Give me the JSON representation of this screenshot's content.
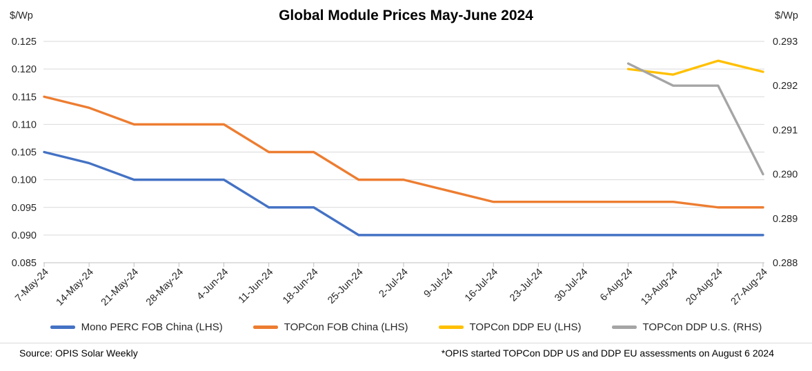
{
  "header": {
    "title": "Global Module Prices May-June 2024",
    "left_axis_unit": "$/Wp",
    "right_axis_unit": "$/Wp"
  },
  "footer": {
    "source": "Source: OPIS Solar Weekly",
    "footnote": "*OPIS started TOPCon DDP US and DDP EU assessments on August 6 2024"
  },
  "colors": {
    "gridline": "#D9D9D9",
    "axis_line": "#BFBFBF",
    "text": "#262626",
    "mono_perc_blue": "#4472C4",
    "topcon_fob_orange": "#ED7D31",
    "topcon_eu_yellow": "#FFC000",
    "topcon_us_gray": "#A5A5A5"
  },
  "chart_data": {
    "type": "line",
    "title": "Global Module Prices May-June 2024",
    "categories": [
      "7-May-24",
      "14-May-24",
      "21-May-24",
      "28-May-24",
      "4-Jun-24",
      "11-Jun-24",
      "18-Jun-24",
      "25-Jun-24",
      "2-Jul-24",
      "9-Jul-24",
      "16-Jul-24",
      "23-Jul-24",
      "30-Jul-24",
      "6-Aug-24",
      "13-Aug-24",
      "20-Aug-24",
      "27-Aug-24"
    ],
    "series": [
      {
        "name": "Mono PERC FOB China (LHS)",
        "axis": "left",
        "color": "#4472C4",
        "values": [
          0.105,
          0.103,
          0.1,
          0.1,
          0.1,
          0.095,
          0.095,
          0.09,
          0.09,
          0.09,
          0.09,
          0.09,
          0.09,
          0.09,
          0.09,
          0.09,
          0.09
        ]
      },
      {
        "name": "TOPCon FOB China (LHS)",
        "axis": "left",
        "color": "#ED7D31",
        "values": [
          0.115,
          0.113,
          0.11,
          0.11,
          0.11,
          0.105,
          0.105,
          0.1,
          0.1,
          0.098,
          0.096,
          0.096,
          0.096,
          0.096,
          0.096,
          0.095,
          0.095
        ]
      },
      {
        "name": "TOPCon DDP EU (LHS)",
        "axis": "left",
        "color": "#FFC000",
        "values": [
          null,
          null,
          null,
          null,
          null,
          null,
          null,
          null,
          null,
          null,
          null,
          null,
          null,
          0.12,
          0.119,
          0.1215,
          0.1195
        ]
      },
      {
        "name": "TOPCon DDP U.S. (RHS)",
        "axis": "right",
        "color": "#A5A5A5",
        "values": [
          null,
          null,
          null,
          null,
          null,
          null,
          null,
          null,
          null,
          null,
          null,
          null,
          null,
          0.2925,
          0.292,
          0.292,
          0.29
        ]
      }
    ],
    "left_axis": {
      "unit": "$/Wp",
      "min": 0.085,
      "max": 0.125,
      "step": 0.005,
      "tick_labels": [
        "0.125",
        "0.120",
        "0.115",
        "0.110",
        "0.105",
        "0.100",
        "0.095",
        "0.090",
        "0.085"
      ]
    },
    "right_axis": {
      "unit": "$/Wp",
      "min": 0.288,
      "max": 0.293,
      "step": 0.001,
      "tick_labels": [
        "0.293",
        "0.292",
        "0.291",
        "0.290",
        "0.289",
        "0.288"
      ]
    },
    "grid": true,
    "legend_position": "bottom"
  }
}
